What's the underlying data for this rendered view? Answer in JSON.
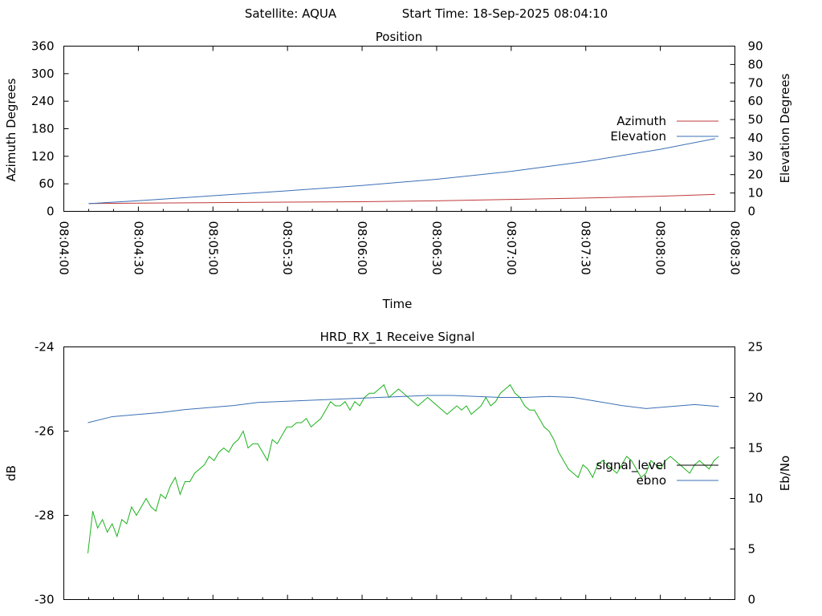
{
  "header": {
    "satellite": "Satellite: AQUA",
    "start_time": "Start Time: 18-Sep-2025 08:04:10"
  },
  "colors": {
    "azimuth": "#c0393b",
    "elevation": "#3a6fb5",
    "signal_level": "#000000",
    "signal_trace": "#1bb21b",
    "ebno": "#3a6fb5"
  },
  "chart_data": [
    {
      "type": "line",
      "title": "Position",
      "xlabel": "Time",
      "ylabel": "Azimuth Degrees",
      "y2label": "Elevation Degrees",
      "xlim": [
        0,
        270
      ],
      "x_ticks": [
        {
          "t": 0,
          "label": "08:04:00"
        },
        {
          "t": 30,
          "label": "08:04:30"
        },
        {
          "t": 60,
          "label": "08:05:00"
        },
        {
          "t": 90,
          "label": "08:05:30"
        },
        {
          "t": 120,
          "label": "08:06:00"
        },
        {
          "t": 150,
          "label": "08:06:30"
        },
        {
          "t": 180,
          "label": "08:07:00"
        },
        {
          "t": 210,
          "label": "08:07:30"
        },
        {
          "t": 240,
          "label": "08:08:00"
        },
        {
          "t": 270,
          "label": "08:08:30"
        }
      ],
      "ylim": [
        0,
        360
      ],
      "y_ticks": [
        0,
        60,
        120,
        180,
        240,
        300,
        360
      ],
      "y2lim": [
        0,
        90
      ],
      "y2_ticks": [
        0,
        10,
        20,
        30,
        40,
        50,
        60,
        70,
        80,
        90
      ],
      "legend_position": "right",
      "series": [
        {
          "name": "Azimuth",
          "axis": "y",
          "x": [
            10,
            30,
            60,
            90,
            120,
            150,
            180,
            210,
            240,
            262
          ],
          "y": [
            17,
            18,
            19,
            20,
            21,
            23,
            26,
            29,
            33,
            37
          ]
        },
        {
          "name": "Elevation",
          "axis": "y2",
          "x": [
            10,
            30,
            60,
            90,
            120,
            150,
            180,
            210,
            240,
            262
          ],
          "y": [
            4.2,
            5.8,
            8.5,
            11.2,
            14.1,
            17.5,
            21.8,
            27.2,
            33.8,
            39.6
          ]
        }
      ]
    },
    {
      "type": "line",
      "title": "HRD_RX_1 Receive Signal",
      "ylabel": "dB",
      "y2label": "Eb/No",
      "xlim": [
        0,
        260
      ],
      "ylim": [
        -30,
        -24
      ],
      "y_ticks": [
        -30,
        -28,
        -26,
        -24
      ],
      "y2lim": [
        0,
        25
      ],
      "y2_ticks": [
        0,
        5,
        10,
        15,
        20,
        25
      ],
      "legend_position": "right",
      "legend": [
        "signal_level",
        "ebno"
      ],
      "series": [
        {
          "name": "signal_level",
          "axis": "y",
          "x": [
            0,
            2,
            4,
            6,
            8,
            10,
            12,
            14,
            16,
            18,
            20,
            22,
            24,
            26,
            28,
            30,
            32,
            34,
            36,
            38,
            40,
            42,
            44,
            46,
            48,
            50,
            52,
            54,
            56,
            58,
            60,
            62,
            64,
            66,
            68,
            70,
            72,
            74,
            76,
            78,
            80,
            82,
            84,
            86,
            88,
            90,
            92,
            94,
            96,
            98,
            100,
            102,
            104,
            106,
            108,
            110,
            112,
            114,
            116,
            118,
            120,
            122,
            124,
            126,
            128,
            130,
            132,
            134,
            136,
            138,
            140,
            142,
            144,
            146,
            148,
            150,
            152,
            154,
            156,
            158,
            160,
            162,
            164,
            166,
            168,
            170,
            172,
            174,
            176,
            178,
            180,
            182,
            184,
            186,
            188,
            190,
            192,
            194,
            196,
            198,
            200,
            202,
            204,
            206,
            208,
            210,
            212,
            214,
            216,
            218,
            220,
            222,
            224,
            226,
            228,
            230,
            232,
            234,
            236,
            238,
            240,
            242,
            244,
            246,
            248,
            250,
            252,
            254,
            256,
            258,
            260
          ],
          "y": [
            -28.9,
            -27.9,
            -28.3,
            -28.1,
            -28.4,
            -28.2,
            -28.5,
            -28.1,
            -28.2,
            -27.8,
            -28.0,
            -27.8,
            -27.6,
            -27.8,
            -27.9,
            -27.5,
            -27.6,
            -27.3,
            -27.1,
            -27.5,
            -27.2,
            -27.2,
            -27.0,
            -26.9,
            -26.8,
            -26.6,
            -26.7,
            -26.5,
            -26.4,
            -26.5,
            -26.3,
            -26.2,
            -26.0,
            -26.4,
            -26.3,
            -26.3,
            -26.5,
            -26.7,
            -26.2,
            -26.3,
            -26.1,
            -25.9,
            -25.9,
            -25.8,
            -25.8,
            -25.7,
            -25.9,
            -25.8,
            -25.7,
            -25.5,
            -25.3,
            -25.4,
            -25.4,
            -25.3,
            -25.5,
            -25.3,
            -25.4,
            -25.2,
            -25.1,
            -25.1,
            -25.0,
            -24.9,
            -25.2,
            -25.1,
            -25.0,
            -25.1,
            -25.2,
            -25.3,
            -25.4,
            -25.3,
            -25.2,
            -25.3,
            -25.4,
            -25.5,
            -25.6,
            -25.5,
            -25.4,
            -25.5,
            -25.4,
            -25.6,
            -25.5,
            -25.4,
            -25.2,
            -25.4,
            -25.3,
            -25.1,
            -25.0,
            -24.9,
            -25.1,
            -25.2,
            -25.4,
            -25.5,
            -25.5,
            -25.7,
            -25.9,
            -26.0,
            -26.2,
            -26.5,
            -26.7,
            -26.9,
            -27.0,
            -27.1,
            -26.8,
            -26.9,
            -27.1,
            -26.8,
            -26.7,
            -26.8,
            -26.9,
            -27.0,
            -26.8,
            -26.6,
            -26.7,
            -26.9,
            -27.1,
            -27.0,
            -26.7,
            -26.8,
            -26.9,
            -26.7,
            -26.6,
            -26.7,
            -26.8,
            -26.9,
            -27.0,
            -26.8,
            -26.7,
            -26.8,
            -26.9,
            -26.7,
            -26.6
          ],
          "color_key": "signal_trace"
        },
        {
          "name": "ebno",
          "axis": "y2",
          "x": [
            0,
            10,
            20,
            30,
            40,
            50,
            60,
            70,
            80,
            90,
            100,
            110,
            120,
            130,
            140,
            150,
            160,
            170,
            180,
            190,
            200,
            210,
            220,
            230,
            240,
            250,
            260
          ],
          "y": [
            17.5,
            18.1,
            18.3,
            18.5,
            18.8,
            19.0,
            19.2,
            19.5,
            19.6,
            19.7,
            19.8,
            19.9,
            20.0,
            20.1,
            20.2,
            20.2,
            20.1,
            20.0,
            20.0,
            20.1,
            20.0,
            19.6,
            19.2,
            18.9,
            19.1,
            19.3,
            19.1
          ],
          "color_key": "ebno"
        }
      ]
    }
  ]
}
